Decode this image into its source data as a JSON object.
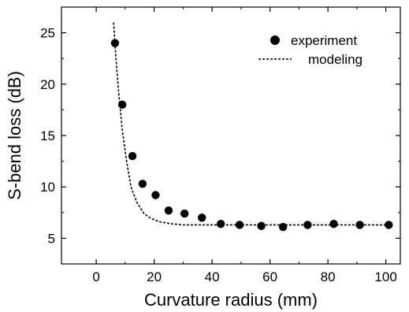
{
  "chart_data": {
    "type": "scatter",
    "xlabel": "Curvature radius (mm)",
    "ylabel": "S-bend loss (dB)",
    "xlim": [
      -12,
      105
    ],
    "ylim": [
      2.5,
      27.5
    ],
    "x_ticks": [
      0,
      20,
      40,
      60,
      80,
      100
    ],
    "y_ticks": [
      5,
      10,
      15,
      20,
      25
    ],
    "x_tick_labels": [
      "0",
      "20",
      "40",
      "60",
      "80",
      "100"
    ],
    "y_tick_labels": [
      "5",
      "10",
      "15",
      "20",
      "25"
    ],
    "legend_position": "top-right",
    "series": [
      {
        "name": "experiment",
        "style": "markers",
        "color": "#000000",
        "x": [
          6.5,
          9,
          12.5,
          16,
          20.5,
          25,
          30.5,
          36.5,
          43,
          49.5,
          57,
          64.5,
          73,
          82,
          91,
          101
        ],
        "y": [
          24.0,
          18.0,
          13.0,
          10.3,
          9.2,
          7.7,
          7.4,
          7.0,
          6.4,
          6.3,
          6.2,
          6.1,
          6.3,
          6.4,
          6.3,
          6.3
        ]
      },
      {
        "name": "modeling",
        "style": "dashed-line",
        "color": "#000000",
        "x": [
          6.0,
          6.8,
          7.8,
          9.0,
          10.5,
          12.0,
          14.0,
          16.5,
          19.0,
          22.0,
          26.0,
          30.0,
          40.0,
          50.0,
          60.0,
          70.0,
          80.0,
          90.0,
          101.0
        ],
        "y": [
          26.0,
          22.5,
          19.0,
          15.5,
          12.5,
          10.0,
          8.5,
          7.4,
          6.9,
          6.6,
          6.4,
          6.3,
          6.3,
          6.3,
          6.3,
          6.3,
          6.3,
          6.3,
          6.3
        ]
      }
    ]
  }
}
